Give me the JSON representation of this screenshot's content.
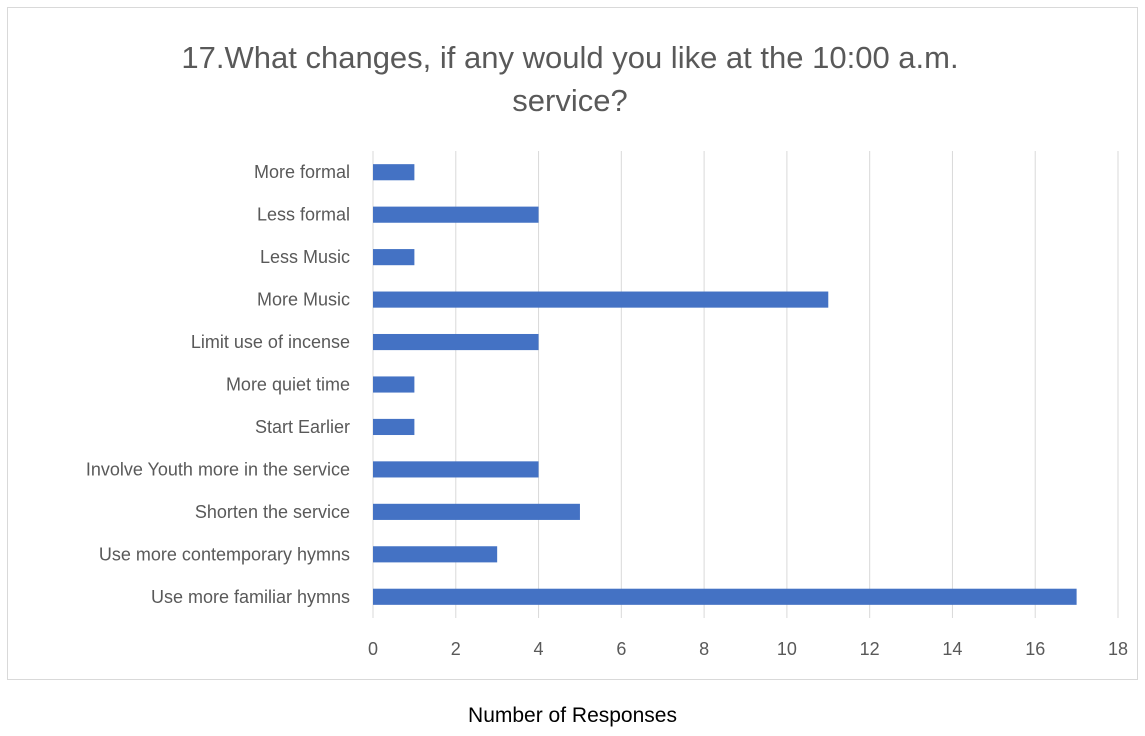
{
  "chart_data": {
    "type": "bar",
    "orientation": "horizontal",
    "title": "17.What changes, if any would you like at the 10:00 a.m. service?",
    "xlabel": "Number of Responses",
    "ylabel": "",
    "categories": [
      "More formal",
      "Less formal",
      "Less Music",
      "More Music",
      "Limit use of incense",
      "More quiet time",
      "Start Earlier",
      "Involve Youth more in the service",
      "Shorten the service",
      "Use more contemporary hymns",
      "Use more familiar hymns"
    ],
    "values": [
      1,
      4,
      1,
      11,
      4,
      1,
      1,
      4,
      5,
      3,
      17
    ],
    "xlim": [
      0,
      18
    ],
    "x_ticks": [
      0,
      2,
      4,
      6,
      8,
      10,
      12,
      14,
      16,
      18
    ],
    "grid": true,
    "legend": "none",
    "bar_color": "#4472C4",
    "gridline_color": "#d9d9d9"
  }
}
